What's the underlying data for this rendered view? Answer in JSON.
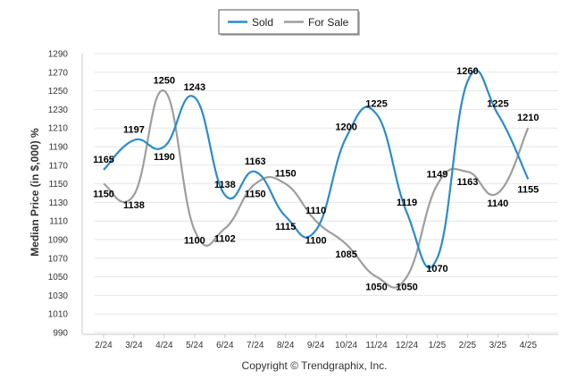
{
  "chart_data": {
    "type": "line",
    "categories": [
      "2/24",
      "3/24",
      "4/24",
      "5/24",
      "6/24",
      "7/24",
      "8/24",
      "9/24",
      "10/24",
      "11/24",
      "12/24",
      "1/25",
      "2/25",
      "3/25",
      "4/25"
    ],
    "series": [
      {
        "name": "Sold",
        "color": "#2b8ccb",
        "values": [
          1165,
          1197,
          1190,
          1243,
          1138,
          1163,
          1115,
          1100,
          1200,
          1225,
          1119,
          1070,
          1260,
          1225,
          1155
        ],
        "labels": [
          "1165",
          "1197",
          "1190",
          "1243",
          "1138",
          "1163",
          "1115",
          "1100",
          "1200",
          "1225",
          "1119",
          "1070",
          "1260",
          "1225",
          "1155"
        ]
      },
      {
        "name": "For Sale",
        "color": "#9e9e9e",
        "values": [
          1150,
          1138,
          1250,
          1100,
          1102,
          1150,
          1150,
          1110,
          1085,
          1050,
          1050,
          1149,
          1163,
          1140,
          1210
        ],
        "labels": [
          "1150",
          "1138",
          "1250",
          "1100",
          "1102",
          "1150",
          "1150",
          "1110",
          "1085",
          "1050",
          "1050",
          "1149",
          "1163",
          "1140",
          "1210"
        ]
      }
    ],
    "ylabel": "Median Price (in $,000) %",
    "ylim": [
      990,
      1290
    ],
    "yticks": [
      990,
      1010,
      1030,
      1050,
      1070,
      1090,
      1110,
      1130,
      1150,
      1170,
      1190,
      1210,
      1230,
      1250,
      1270,
      1290
    ],
    "grid": true,
    "legend": "top-center",
    "credit": "Copyright © Trendgraphix, Inc."
  }
}
